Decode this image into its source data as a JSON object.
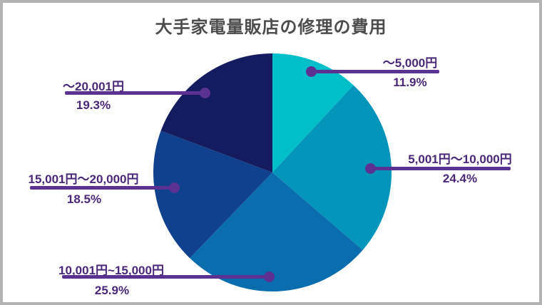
{
  "title": "大手家電量販店の修理の費用",
  "colors": {
    "background": "#ffffff",
    "border": "#b3b3b3",
    "title": "#4d4d4d",
    "callout_line": "#5b3191",
    "callout_text": "#4a2878"
  },
  "chart_data": {
    "type": "pie",
    "title": "大手家電量販店の修理の費用",
    "start_angle_deg": 0,
    "direction": "clockwise",
    "legend_position": "callout-labels",
    "segments": [
      {
        "label": "～5,000円",
        "value": 11.9,
        "pct_label": "11.9%",
        "color": "#00bfc8"
      },
      {
        "label": "5,001円～10,000円",
        "value": 24.4,
        "pct_label": "24.4%",
        "color": "#0496ba"
      },
      {
        "label": "10,001円~15,000円",
        "value": 25.9,
        "pct_label": "25.9%",
        "color": "#0a6dad"
      },
      {
        "label": "15,001円～20,000円",
        "value": 18.5,
        "pct_label": "18.5%",
        "color": "#0f418c"
      },
      {
        "label": "～20,001円",
        "value": 19.3,
        "pct_label": "19.3%",
        "color": "#151b5f"
      }
    ]
  }
}
